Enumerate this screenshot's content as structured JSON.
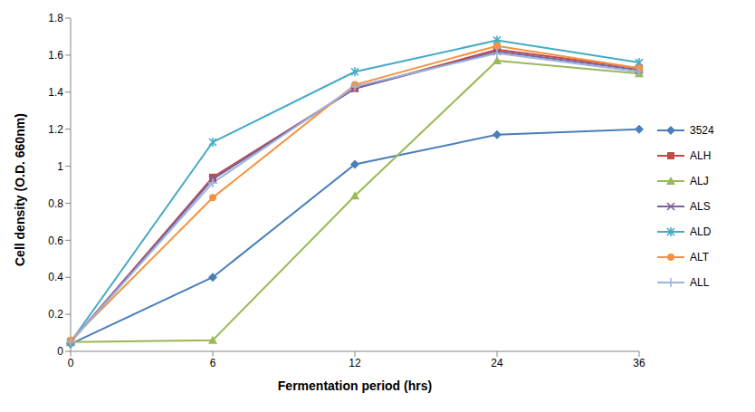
{
  "chart_data": {
    "type": "line",
    "x_label": "Fermentation period  (hrs)",
    "y_label": "Cell density (O.D. 660nm)",
    "categories": [
      "0",
      "6",
      "12",
      "24",
      "36"
    ],
    "ylim": [
      0,
      1.8
    ],
    "yticks": [
      0,
      0.2,
      0.4,
      0.6,
      0.8,
      1,
      1.2,
      1.4,
      1.6,
      1.8
    ],
    "grid": false,
    "legend": "right",
    "series": [
      {
        "name": "3524",
        "color": "#4a7ebb",
        "marker": "diamond",
        "line_style": "solid",
        "values": [
          0.04,
          0.4,
          1.01,
          1.17,
          1.2
        ]
      },
      {
        "name": "ALH",
        "color": "#be4b48",
        "marker": "square",
        "line_style": "solid",
        "values": [
          0.05,
          0.94,
          1.42,
          1.63,
          1.53
        ]
      },
      {
        "name": "ALJ",
        "color": "#98b954",
        "marker": "triangle",
        "line_style": "solid",
        "values": [
          0.05,
          0.06,
          0.84,
          1.57,
          1.5
        ]
      },
      {
        "name": "ALS",
        "color": "#7d60a0",
        "marker": "x",
        "line_style": "solid",
        "values": [
          0.05,
          0.93,
          1.42,
          1.62,
          1.52
        ]
      },
      {
        "name": "ALD",
        "color": "#46aac5",
        "marker": "star",
        "line_style": "solid",
        "values": [
          0.05,
          1.13,
          1.51,
          1.68,
          1.56
        ]
      },
      {
        "name": "ALT",
        "color": "#f69240",
        "marker": "circle",
        "line_style": "solid",
        "values": [
          0.06,
          0.83,
          1.44,
          1.65,
          1.53
        ]
      },
      {
        "name": "ALL",
        "color": "#9bb3dd",
        "marker": "plus",
        "line_style": "solid",
        "values": [
          0.05,
          0.91,
          1.43,
          1.61,
          1.51
        ]
      }
    ]
  }
}
